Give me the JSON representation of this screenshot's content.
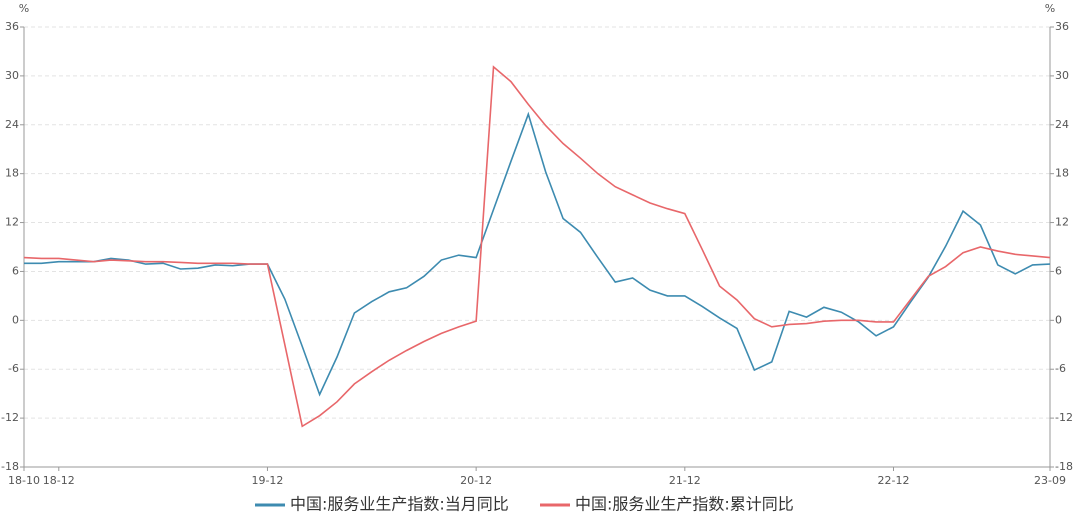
{
  "chart_data": {
    "type": "line",
    "y_unit": "%",
    "y2_unit": "%",
    "categories": [
      "18-10",
      null,
      "18-12",
      null,
      null,
      null,
      null,
      null,
      null,
      null,
      null,
      null,
      null,
      null,
      "19-12",
      null,
      null,
      null,
      null,
      null,
      null,
      null,
      null,
      null,
      null,
      null,
      "20-12",
      null,
      null,
      null,
      null,
      null,
      null,
      null,
      null,
      null,
      null,
      null,
      "21-12",
      null,
      null,
      null,
      null,
      null,
      null,
      null,
      null,
      null,
      null,
      null,
      "22-12",
      null,
      null,
      null,
      null,
      null,
      null,
      null,
      null,
      "23-09"
    ],
    "series": [
      {
        "name": "中国:服务业生产指数:当月同比",
        "color": "#3d8bb0",
        "values": [
          7.0,
          7.0,
          7.2,
          7.2,
          7.2,
          7.6,
          7.4,
          6.9,
          7.0,
          6.3,
          6.4,
          6.8,
          6.7,
          6.9,
          6.9,
          2.6,
          -3.2,
          -9.1,
          -4.5,
          0.9,
          2.3,
          3.5,
          4.0,
          5.4,
          7.4,
          8.0,
          7.7,
          13.6,
          19.5,
          25.3,
          18.2,
          12.5,
          10.8,
          7.7,
          4.7,
          5.2,
          3.7,
          3.0,
          3.0,
          1.7,
          0.3,
          -1.0,
          -6.1,
          -5.1,
          1.1,
          0.4,
          1.6,
          1.0,
          -0.2,
          -1.9,
          -0.8,
          2.3,
          5.3,
          9.1,
          13.4,
          11.7,
          6.8,
          5.7,
          6.8,
          6.9
        ]
      },
      {
        "name": "中国:服务业生产指数:累计同比",
        "color": "#e8676a",
        "values": [
          7.7,
          7.6,
          7.6,
          7.4,
          7.2,
          7.4,
          7.3,
          7.2,
          7.2,
          7.1,
          7.0,
          7.0,
          7.0,
          6.9,
          6.9,
          -3.0,
          -13.0,
          -11.7,
          -10.0,
          -7.8,
          -6.3,
          -4.9,
          -3.7,
          -2.6,
          -1.6,
          -0.8,
          -0.1,
          31.1,
          29.3,
          26.5,
          23.9,
          21.7,
          19.9,
          18.0,
          16.4,
          15.4,
          14.4,
          13.7,
          13.1,
          8.7,
          4.2,
          2.5,
          0.2,
          -0.8,
          -0.5,
          -0.4,
          -0.1,
          0,
          0,
          -0.2,
          -0.2,
          2.6,
          5.4,
          6.6,
          8.3,
          9.0,
          8.5,
          8.1,
          7.9,
          7.7
        ]
      }
    ],
    "ylim": [
      -18,
      36
    ],
    "yticks": [
      -18,
      -12,
      -6,
      0,
      6,
      12,
      18,
      24,
      30,
      36
    ],
    "y2lim": [
      -18,
      36
    ],
    "y2ticks": [
      -18,
      -12,
      -6,
      0,
      6,
      12,
      18,
      24,
      30,
      36
    ],
    "grid": true,
    "legend": "bottom"
  }
}
